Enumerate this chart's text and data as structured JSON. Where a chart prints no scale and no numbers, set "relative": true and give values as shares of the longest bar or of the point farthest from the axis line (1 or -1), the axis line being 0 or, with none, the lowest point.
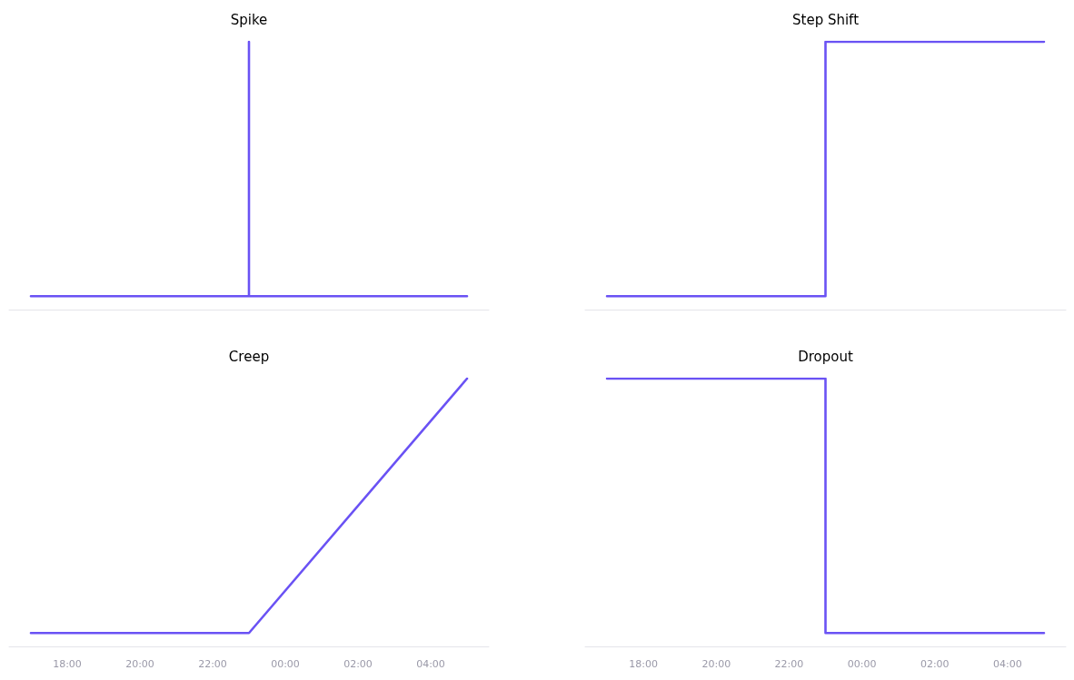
{
  "chart_data": [
    {
      "type": "line",
      "title": "Spike",
      "x": [
        "--01-01T17:00",
        "--01-01T23:00",
        "--01-01T23:00",
        "--01-01T23:00",
        "--01-02T05:00"
      ],
      "values": [
        0.05,
        0.05,
        1,
        0.05,
        0.05
      ],
      "color": "#6a52f4",
      "relative": true,
      "xlim": [
        "--01-01T16:24",
        "--01-02T05:36"
      ],
      "tick_labels": false
    },
    {
      "type": "line",
      "title": "Step Shift",
      "x": [
        "--01-01T17:00",
        "--01-01T23:00",
        "--01-01T23:00",
        "--01-02T05:00"
      ],
      "values": [
        0.05,
        0.05,
        1,
        1
      ],
      "color": "#6a52f4",
      "relative": true,
      "xlim": [
        "--01-01T16:24",
        "--01-02T05:36"
      ],
      "tick_labels": false
    },
    {
      "type": "line",
      "title": "Creep",
      "x": [
        "--01-01T17:00",
        "--01-01T23:00",
        "--01-02T05:00"
      ],
      "values": [
        0.05,
        0.05,
        1
      ],
      "color": "#6a52f4",
      "relative": true,
      "xlim": [
        "--01-01T16:24",
        "--01-02T05:36"
      ],
      "xticks": [
        {
          "value": "--01-01T18:00",
          "label": "18:00"
        },
        {
          "value": "--01-01T20:00",
          "label": "20:00"
        },
        {
          "value": "--01-01T22:00",
          "label": "22:00"
        },
        {
          "value": "--01-02T00:00",
          "label": "00:00"
        },
        {
          "value": "--01-02T02:00",
          "label": "02:00"
        },
        {
          "value": "--01-02T04:00",
          "label": "04:00"
        }
      ],
      "tick_labels": "x"
    },
    {
      "type": "line",
      "title": "Dropout",
      "x": [
        "--01-01T17:00",
        "--01-01T23:00",
        "--01-01T23:00",
        "--01-02T05:00"
      ],
      "values": [
        1,
        1,
        0.05,
        0.05
      ],
      "color": "#6a52f4",
      "relative": true,
      "xlim": [
        "--01-01T16:24",
        "--01-02T05:36"
      ],
      "xticks": [
        {
          "value": "--01-01T18:00",
          "label": "18:00"
        },
        {
          "value": "--01-01T20:00",
          "label": "20:00"
        },
        {
          "value": "--01-01T22:00",
          "label": "22:00"
        },
        {
          "value": "--01-02T00:00",
          "label": "00:00"
        },
        {
          "value": "--01-02T02:00",
          "label": "02:00"
        },
        {
          "value": "--01-02T04:00",
          "label": "04:00"
        }
      ],
      "tick_labels": "x"
    }
  ]
}
